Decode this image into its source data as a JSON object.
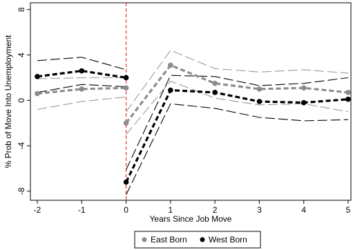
{
  "chart_data": {
    "type": "line",
    "title": "",
    "xlabel": "Years Since Job Move",
    "ylabel": "% Prob of Move Into Unemployment",
    "x": [
      -2,
      -1,
      0,
      1,
      2,
      3,
      4,
      5
    ],
    "xticks": [
      "-2",
      "-1",
      "0",
      "1",
      "2",
      "3",
      "4",
      "5"
    ],
    "yticks": [
      "-8",
      "-4",
      "0",
      "4",
      "8"
    ],
    "xlim": [
      -2,
      5
    ],
    "ylim": [
      -8.8,
      8.6
    ],
    "event_line": {
      "x": 0,
      "color": "#e8453c"
    },
    "break_after_x": -1,
    "series": [
      {
        "name": "East Born",
        "color": "#8c8c8c",
        "ci_color": "#9a9a9a",
        "pre": {
          "x": [
            -2,
            -1,
            0
          ],
          "y": [
            0.6,
            1.0,
            1.1
          ],
          "lo": [
            -0.8,
            -0.1,
            0.3
          ],
          "hi": [
            1.9,
            2.0,
            2.0
          ]
        },
        "post": {
          "x": [
            0,
            1,
            2,
            3,
            4,
            5
          ],
          "y": [
            -2.0,
            3.1,
            1.5,
            1.0,
            1.1,
            0.7
          ],
          "lo": [
            -3.0,
            1.7,
            0.2,
            -0.4,
            -0.3,
            -1.0
          ],
          "hi": [
            -1.0,
            4.4,
            2.8,
            2.5,
            2.7,
            2.4
          ]
        }
      },
      {
        "name": "West Born",
        "color": "#000000",
        "ci_color": "#000000",
        "pre": {
          "x": [
            -2,
            -1,
            0
          ],
          "y": [
            2.1,
            2.6,
            2.0
          ],
          "lo": [
            0.7,
            1.4,
            1.2
          ],
          "hi": [
            3.5,
            3.8,
            2.7
          ]
        },
        "post": {
          "x": [
            0,
            1,
            2,
            3,
            4,
            5
          ],
          "y": [
            -7.2,
            0.9,
            0.7,
            -0.1,
            -0.2,
            0.1
          ],
          "lo": [
            -8.3,
            -0.3,
            -0.7,
            -1.5,
            -1.8,
            -1.7
          ],
          "hi": [
            -6.1,
            2.2,
            2.1,
            1.3,
            1.5,
            2.0
          ]
        }
      }
    ],
    "legend": {
      "position": "bottom",
      "entries": [
        "East Born",
        "West Born"
      ]
    }
  }
}
